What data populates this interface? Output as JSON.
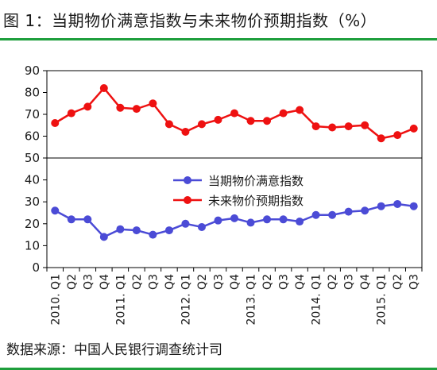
{
  "title": "图 1：当期物价满意指数与未来物价预期指数（%）",
  "source": "数据来源：中国人民银行调查统计司",
  "colors": {
    "current_series": "#4b4bd6",
    "expected_series": "#ee1111",
    "rule": "#1e9e3c"
  },
  "chart_data": [
    {
      "type": "line",
      "panel": "top",
      "ylim": [
        50,
        90
      ],
      "yticks": [
        "50",
        "60",
        "70",
        "80",
        "90"
      ],
      "categories": [
        "2010. Q1",
        "Q2",
        "Q3",
        "Q4",
        "2011. Q1",
        "Q2",
        "Q3",
        "Q4",
        "2012. Q1",
        "Q2",
        "Q3",
        "Q4",
        "2013. Q1",
        "Q2",
        "Q3",
        "Q4",
        "2014. Q1",
        "Q2",
        "Q3",
        "Q4",
        "2015. Q1",
        "Q2",
        "Q3"
      ],
      "series": [
        {
          "name": "未来物价预期指数",
          "color": "#ee1111",
          "values": [
            66,
            70.5,
            73.5,
            82,
            73,
            72.5,
            75,
            65.5,
            62,
            65.5,
            67.5,
            70.5,
            67,
            67,
            70.5,
            72,
            64.5,
            64,
            64.5,
            65,
            59,
            60.5,
            63.5
          ]
        }
      ]
    },
    {
      "type": "line",
      "panel": "bottom",
      "ylim": [
        0,
        50
      ],
      "yticks": [
        "0",
        "10",
        "20",
        "30",
        "40",
        "50"
      ],
      "categories": [
        "2010. Q1",
        "Q2",
        "Q3",
        "Q4",
        "2011. Q1",
        "Q2",
        "Q3",
        "Q4",
        "2012. Q1",
        "Q2",
        "Q3",
        "Q4",
        "2013. Q1",
        "Q2",
        "Q3",
        "Q4",
        "2014. Q1",
        "Q2",
        "Q3",
        "Q4",
        "2015. Q1",
        "Q2",
        "Q3"
      ],
      "legend": {
        "placement": "top-center"
      },
      "series": [
        {
          "name": "当期物价满意指数",
          "color": "#4b4bd6",
          "values": [
            26,
            22,
            22,
            14,
            17.5,
            17,
            15,
            17,
            20,
            18.5,
            21.5,
            22.5,
            20.5,
            22,
            22,
            21,
            24,
            24,
            25.5,
            26,
            28,
            29,
            28
          ]
        }
      ]
    }
  ]
}
